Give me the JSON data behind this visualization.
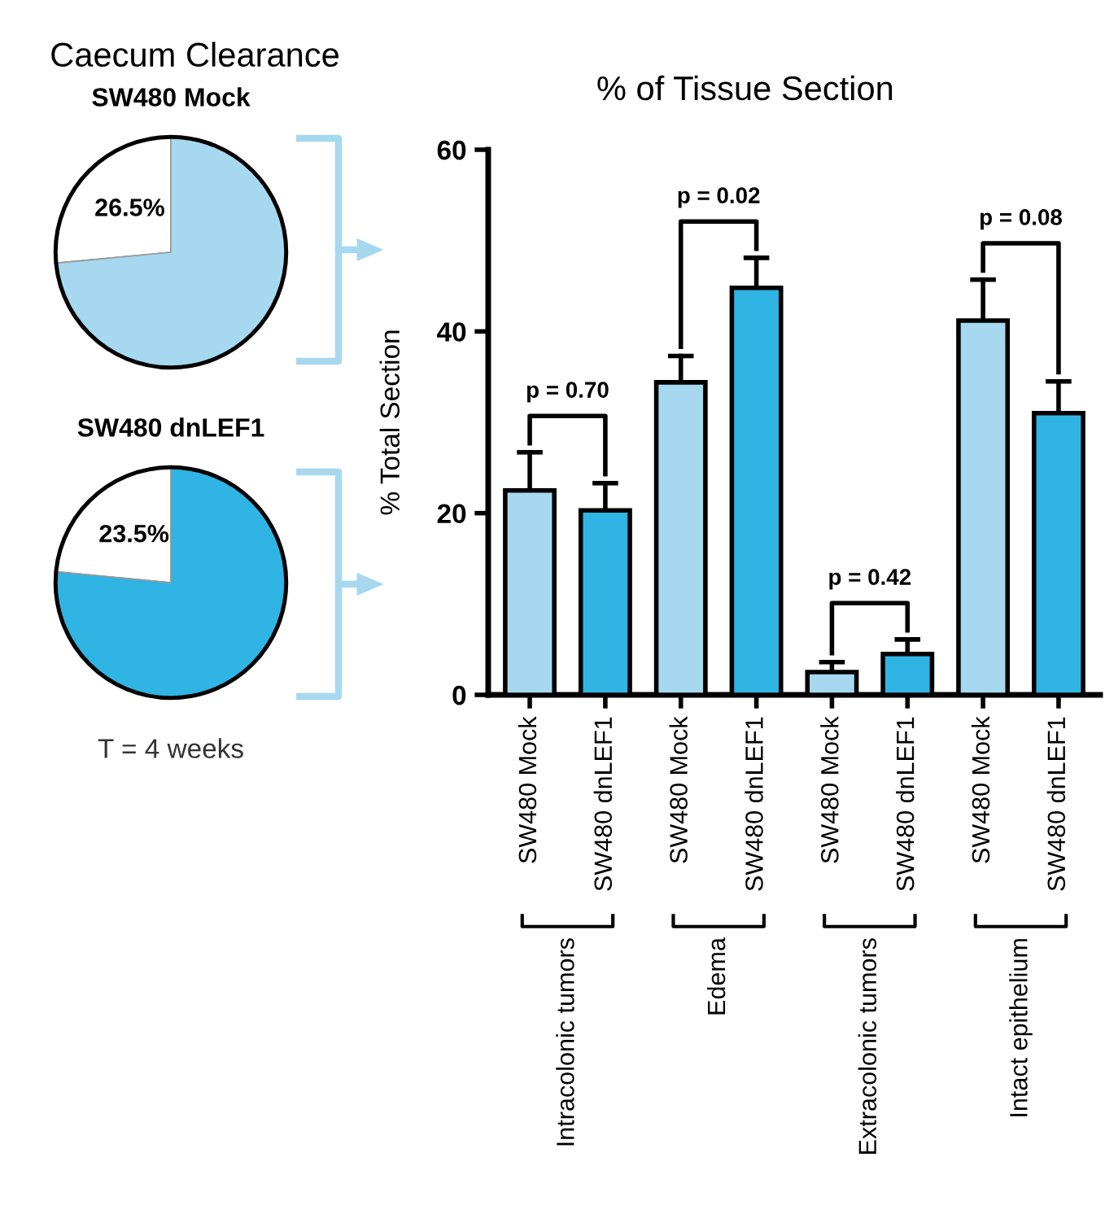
{
  "chart_data": [
    {
      "type": "pie",
      "title": "Caecum Clearance",
      "subtitle": "SW480 Mock",
      "categories": [
        null,
        null
      ],
      "values": [
        26.5,
        73.5
      ],
      "colors": [
        "#ffffff",
        "#a6d8f0"
      ],
      "value_labels": [
        "26.5%",
        null
      ]
    },
    {
      "type": "pie",
      "subtitle": "SW480 dnLEF1",
      "categories": [
        null,
        null
      ],
      "values": [
        23.5,
        76.5
      ],
      "colors": [
        "#ffffff",
        "#2fb4e3"
      ],
      "value_labels": [
        "23.5%",
        null
      ],
      "annotations": [
        "T = 4 weeks"
      ]
    },
    {
      "type": "bar",
      "title": "% of Tissue Section",
      "ylabel": "% Total Section",
      "categories": [
        "SW480 Mock",
        "SW480 dnLEF1",
        "SW480 Mock",
        "SW480 dnLEF1",
        "SW480 Mock",
        "SW480 dnLEF1",
        "SW480 Mock",
        "SW480 dnLEF1"
      ],
      "values": [
        22.5,
        20.3,
        34.4,
        44.8,
        2.5,
        4.5,
        41.2,
        31.0
      ],
      "errors": [
        [
          22.5,
          26.7
        ],
        [
          20.3,
          23.3
        ],
        [
          34.4,
          37.3
        ],
        [
          44.8,
          48.1
        ],
        [
          2.5,
          3.6
        ],
        [
          4.5,
          6.1
        ],
        [
          41.2,
          45.7
        ],
        [
          31.0,
          34.5
        ]
      ],
      "colors": [
        "#a6d8f0",
        "#2fb4e3",
        "#a6d8f0",
        "#2fb4e3",
        "#a6d8f0",
        "#2fb4e3",
        "#a6d8f0",
        "#2fb4e3"
      ],
      "ylim": [
        0,
        60
      ],
      "yticks": [
        0,
        20,
        40,
        60
      ],
      "grid": false,
      "annotations": [
        "p = 0.70",
        "p = 0.02",
        "p = 0.42",
        "p = 0.08",
        "Intracolonic tumors",
        "Edema",
        "Extracolonic tumors",
        "Intact epithelium"
      ]
    }
  ]
}
